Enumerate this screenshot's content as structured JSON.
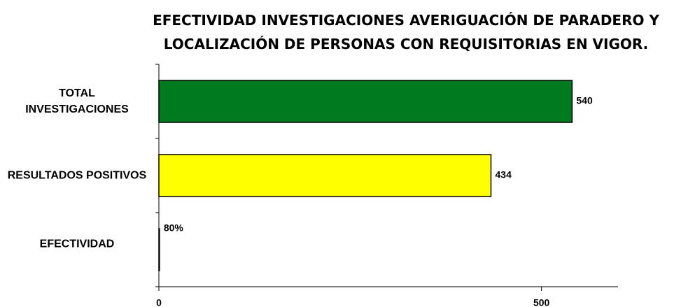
{
  "chart_data": {
    "type": "bar",
    "orientation": "horizontal",
    "title": "EFECTIVIDAD INVESTIGACIONES AVERIGUACIÓN DE PARADERO Y LOCALIZACIÓN DE PERSONAS CON REQUISITORIAS EN VIGOR.",
    "categories": [
      "TOTAL INVESTIGACIONES",
      "RESULTADOS POSITIVOS",
      "EFECTIVIDAD"
    ],
    "values": [
      540,
      434,
      0.8
    ],
    "value_labels": [
      "540",
      "434",
      "80%"
    ],
    "colors": [
      "#007a1e",
      "#ffff00",
      "#ffffff"
    ],
    "xlim": [
      0,
      600
    ],
    "xticks": [
      0,
      500
    ],
    "grid": false
  }
}
